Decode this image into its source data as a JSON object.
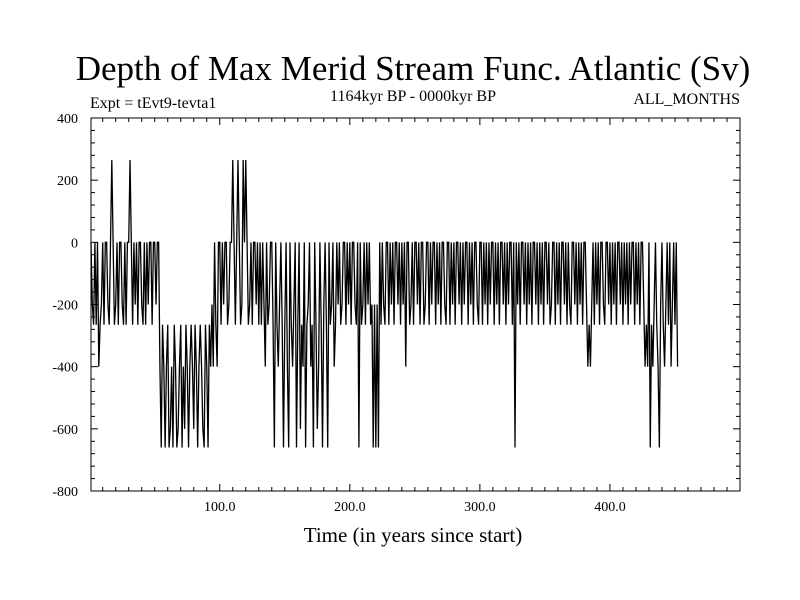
{
  "chart_data": {
    "type": "line",
    "title": "Depth of Max Merid Stream Func. Atlantic (Sv)",
    "subtitle_left": "Expt = tEvt9-tevta1",
    "subtitle_center": "1164kyr BP - 0000kyr BP",
    "subtitle_right": "ALL_MONTHS",
    "xlabel": "Time (in years since start)",
    "ylabel": "",
    "xlim": [
      1,
      500
    ],
    "ylim": [
      -800,
      400
    ],
    "x_major_ticks": [
      100,
      200,
      300,
      400
    ],
    "x_tick_labels": [
      "100.0",
      "200.0",
      "300.0",
      "400.0"
    ],
    "y_major_ticks": [
      -800,
      -600,
      -400,
      -200,
      0,
      200,
      400
    ],
    "y_tick_labels": [
      "-800",
      "-600",
      "-400",
      "-200",
      "0",
      "200",
      "400"
    ],
    "grid": false,
    "series": [
      {
        "name": "Depth of Max Merid Stream Func.",
        "x_start": 1,
        "x_step": 1,
        "values": [
          0,
          -200,
          -265,
          0,
          -265,
          0,
          -400,
          -265,
          -200,
          0,
          -265,
          0,
          0,
          -200,
          -265,
          0,
          265,
          0,
          -265,
          -200,
          0,
          -265,
          0,
          0,
          -200,
          -265,
          0,
          -265,
          0,
          0,
          265,
          0,
          -265,
          0,
          -200,
          0,
          -265,
          0,
          0,
          -200,
          -265,
          0,
          -265,
          0,
          -200,
          0,
          0,
          -265,
          0,
          0,
          -200,
          0,
          0,
          -400,
          -660,
          -265,
          -400,
          -660,
          -400,
          -265,
          -660,
          -600,
          -400,
          -660,
          -265,
          -400,
          -660,
          -600,
          -400,
          -265,
          -660,
          -400,
          -600,
          -265,
          -400,
          -660,
          -400,
          -265,
          -400,
          -600,
          -265,
          -400,
          -660,
          -400,
          -265,
          -400,
          -600,
          -660,
          -265,
          -400,
          -660,
          -265,
          -400,
          -200,
          -400,
          0,
          -265,
          -400,
          0,
          0,
          -265,
          0,
          -200,
          0,
          0,
          -265,
          -200,
          0,
          0,
          265,
          0,
          -265,
          0,
          265,
          0,
          -265,
          -200,
          265,
          0,
          265,
          0,
          -265,
          -200,
          0,
          -265,
          0,
          0,
          -200,
          0,
          -265,
          0,
          -265,
          0,
          -200,
          -400,
          0,
          -265,
          -200,
          0,
          0,
          -265,
          -660,
          0,
          -265,
          -400,
          -200,
          0,
          -265,
          -660,
          -265,
          0,
          -400,
          -660,
          0,
          -265,
          -400,
          -200,
          0,
          -660,
          -265,
          0,
          -600,
          -265,
          -400,
          0,
          -660,
          -265,
          -200,
          0,
          -400,
          -265,
          -660,
          0,
          -265,
          -600,
          -400,
          0,
          -265,
          -660,
          -200,
          0,
          -265,
          -660,
          0,
          -265,
          -200,
          0,
          -400,
          -265,
          0,
          -200,
          0,
          -265,
          -200,
          0,
          0,
          -265,
          0,
          -200,
          0,
          -265,
          0,
          0,
          -200,
          -265,
          0,
          -660,
          0,
          -265,
          -200,
          0,
          -265,
          0,
          -200,
          0,
          -265,
          -200,
          -660,
          -200,
          -660,
          -200,
          -660,
          0,
          -265,
          0,
          -200,
          -265,
          0,
          0,
          -265,
          0,
          -200,
          0,
          -265,
          0,
          0,
          -200,
          0,
          -265,
          0,
          -200,
          0,
          -400,
          0,
          0,
          -265,
          -200,
          0,
          -265,
          0,
          0,
          -200,
          0,
          -265,
          0,
          0,
          -265,
          -200,
          0,
          0,
          -265,
          0,
          -200,
          0,
          0,
          -265,
          0,
          -200,
          0,
          -265,
          0,
          0,
          -200,
          -265,
          0,
          0,
          -265,
          0,
          -200,
          0,
          -265,
          0,
          0,
          -200,
          0,
          -265,
          0,
          -200,
          0,
          0,
          -265,
          0,
          -200,
          0,
          -265,
          0,
          0,
          -200,
          -265,
          0,
          0,
          -265,
          0,
          -200,
          0,
          -265,
          0,
          -200,
          0,
          0,
          -265,
          0,
          -200,
          0,
          -265,
          0,
          0,
          -200,
          0,
          -265,
          0,
          -200,
          0,
          0,
          -265,
          0,
          -660,
          0,
          -200,
          0,
          -265,
          0,
          0,
          -200,
          0,
          -265,
          0,
          -200,
          0,
          -265,
          0,
          0,
          -200,
          0,
          -265,
          0,
          -200,
          0,
          -265,
          0,
          0,
          -200,
          0,
          -265,
          -200,
          0,
          0,
          -265,
          0,
          -200,
          0,
          -265,
          0,
          0,
          -200,
          0,
          -265,
          0,
          -200,
          -265,
          0,
          0,
          -200,
          0,
          -265,
          0,
          -200,
          0,
          -265,
          0,
          0,
          -200,
          -400,
          -265,
          -400,
          -200,
          0,
          -265,
          0,
          -200,
          0,
          -265,
          0,
          0,
          -200,
          -265,
          0,
          0,
          -200,
          0,
          -265,
          0,
          -200,
          0,
          -265,
          0,
          0,
          -200,
          0,
          -265,
          0,
          -200,
          0,
          -265,
          0,
          -200,
          0,
          0,
          -265,
          0,
          -200,
          0,
          -265,
          0,
          0,
          -200,
          -400,
          -265,
          -400,
          0,
          -660,
          -265,
          -400,
          -200,
          0,
          -265,
          -400,
          -660,
          -200,
          0,
          -265,
          -400,
          -200,
          0,
          -265,
          0,
          -400,
          -200,
          0,
          -265,
          0,
          -400
        ]
      }
    ]
  }
}
